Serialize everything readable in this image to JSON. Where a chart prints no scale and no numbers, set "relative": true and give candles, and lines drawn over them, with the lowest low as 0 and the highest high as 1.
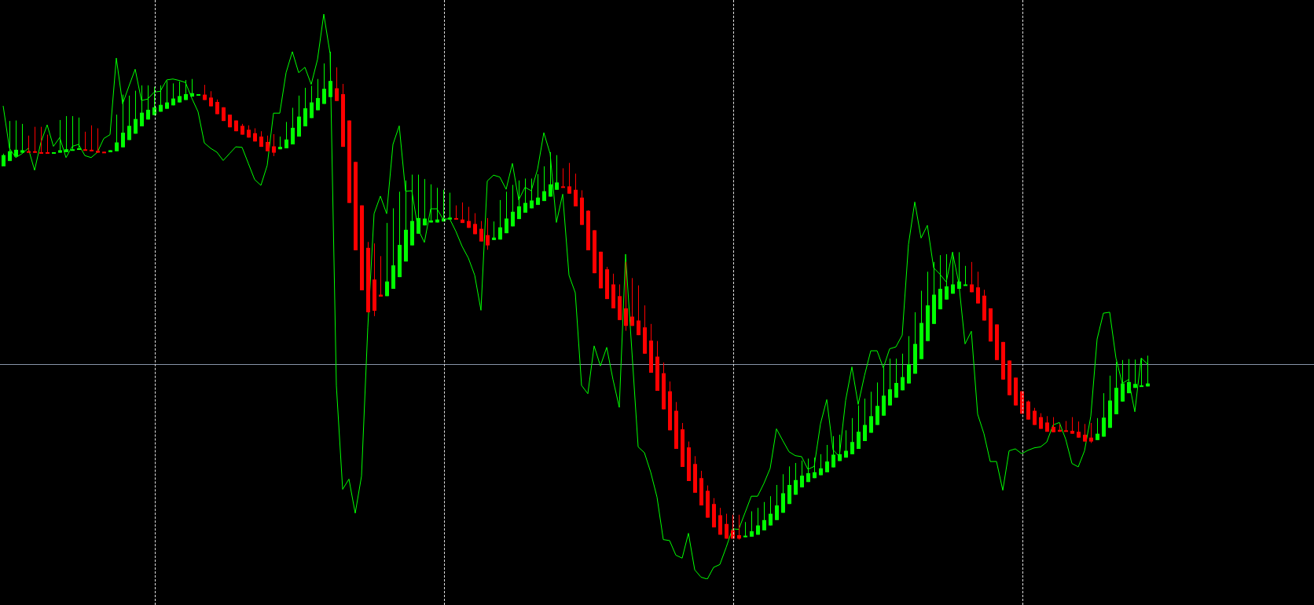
{
  "chart_data": {
    "type": "candlestick",
    "relative": true,
    "legend": false,
    "categories": [
      null,
      null,
      null,
      null,
      null,
      null,
      null,
      null,
      null,
      null,
      null,
      null,
      null,
      null,
      null,
      null,
      null,
      null,
      null,
      null,
      null,
      null,
      null,
      null,
      null,
      null,
      null,
      null,
      null,
      null,
      null,
      null,
      null,
      null,
      null,
      null,
      null,
      null,
      null,
      null,
      null,
      null,
      null,
      null,
      null,
      null,
      null,
      null,
      null,
      null,
      null,
      null,
      null,
      null,
      null,
      null,
      null,
      null,
      null,
      null,
      null,
      null,
      null,
      null,
      null,
      null,
      null,
      null,
      null,
      null,
      null,
      null,
      null,
      null,
      null,
      null,
      null,
      null,
      null,
      null,
      null,
      null,
      null,
      null,
      null,
      null,
      null,
      null,
      null,
      null,
      null,
      null,
      null,
      null,
      null,
      null,
      null,
      null,
      null,
      null,
      null,
      null,
      null,
      null,
      null,
      null,
      null,
      null,
      null,
      null,
      null,
      null,
      null,
      null,
      null,
      null,
      null,
      null,
      null,
      null,
      null,
      null,
      null,
      null,
      null,
      null,
      null,
      null,
      null,
      null,
      null,
      null,
      null,
      null,
      null,
      null,
      null,
      null,
      null,
      null,
      null,
      null,
      null,
      null,
      null,
      null,
      null,
      null,
      null,
      null,
      null,
      null,
      null,
      null,
      null,
      null,
      null,
      null,
      null,
      null,
      null,
      null,
      null,
      null,
      null,
      null,
      null,
      null,
      null,
      null,
      null,
      null,
      null,
      null,
      null,
      null,
      null,
      null,
      null,
      null,
      null,
      null,
      null
    ],
    "ref_lines": [
      {
        "axis": "y",
        "value": 0.359,
        "color": "#8794a8"
      }
    ],
    "series": [
      {
        "type": "line",
        "color": "#00ff00",
        "values": [
          0.889,
          0.802,
          0.783,
          0.791,
          0.802,
          0.757,
          0.814,
          0.85,
          0.806,
          0.824,
          0.783,
          0.806,
          0.81,
          0.787,
          0.783,
          0.794,
          0.822,
          0.83,
          0.987,
          0.893,
          0.929,
          0.964,
          0.9,
          0.903,
          0.917,
          0.919,
          0.942,
          0.944,
          0.941,
          0.937,
          0.905,
          0.877,
          0.813,
          0.802,
          0.794,
          0.777,
          0.791,
          0.805,
          0.804,
          0.771,
          0.738,
          0.726,
          0.767,
          0.874,
          0.874,
          0.957,
          1.0,
          0.957,
          0.968,
          0.933,
          0.984,
          1.077,
          0.996,
          0.316,
          0.103,
          0.124,
          0.054,
          0.13,
          0.435,
          0.668,
          0.704,
          0.668,
          0.81,
          0.848,
          0.714,
          0.715,
          0.636,
          0.609,
          0.678,
          0.678,
          0.656,
          0.658,
          0.632,
          0.601,
          0.577,
          0.542,
          0.47,
          0.735,
          0.747,
          0.743,
          0.718,
          0.771,
          0.696,
          0.722,
          0.715,
          0.759,
          0.834,
          0.791,
          0.65,
          0.708,
          0.542,
          0.506,
          0.316,
          0.299,
          0.397,
          0.356,
          0.394,
          0.328,
          0.271,
          0.585,
          0.387,
          0.19,
          0.178,
          0.138,
          0.087,
          0,
          -0.002,
          -0.032,
          -0.038,
          0.013,
          -0.062,
          -0.077,
          -0.081,
          -0.057,
          -0.051,
          -0.016,
          0.022,
          0.021,
          0.055,
          0.089,
          0.089,
          0.115,
          0.146,
          0.227,
          0.203,
          0.18,
          0.172,
          0.17,
          0.144,
          0.15,
          0.237,
          0.287,
          0.184,
          0.17,
          0.285,
          0.354,
          0.277,
          0.336,
          0.387,
          0.387,
          0.352,
          0.391,
          0.395,
          0.419,
          0.605,
          0.692,
          0.618,
          0.644,
          0.557,
          0.544,
          0.528,
          0.589,
          0.526,
          0.401,
          0.427,
          0.257,
          0.217,
          0.16,
          0.16,
          0.101,
          0.182,
          0.186,
          0.176,
          0.183,
          0.188,
          0.19,
          0.2,
          0.235,
          0.24,
          0.206,
          0.156,
          0.149,
          0.182,
          0.253,
          0.411,
          0.464,
          0.466,
          0.372,
          0.32,
          0.328,
          0.262,
          0.372,
          0.36
        ]
      },
      {
        "type": "candlestick",
        "colors": [
          "#00ff00",
          "#00ff00",
          "#00ff00",
          "#00ff00",
          "#ff0000",
          "#ff0000",
          "#ff0000",
          "#ff0000",
          "#00ff00",
          "#00ff00",
          "#00ff00",
          "#00ff00",
          "#00ff00",
          "#ff0000",
          "#ff0000",
          "#ff0000",
          "#ff0000",
          "#00ff00",
          "#00ff00",
          "#00ff00",
          "#00ff00",
          "#00ff00",
          "#00ff00",
          "#00ff00",
          "#00ff00",
          "#00ff00",
          "#00ff00",
          "#00ff00",
          "#00ff00",
          "#00ff00",
          "#00ff00",
          "#00ff00",
          "#ff0000",
          "#ff0000",
          "#ff0000",
          "#ff0000",
          "#ff0000",
          "#ff0000",
          "#ff0000",
          "#ff0000",
          "#ff0000",
          "#ff0000",
          "#ff0000",
          "#ff0000",
          "#00ff00",
          "#00ff00",
          "#00ff00",
          "#00ff00",
          "#00ff00",
          "#00ff00",
          "#00ff00",
          "#00ff00",
          "#00ff00",
          "#ff0000",
          "#ff0000",
          "#ff0000",
          "#ff0000",
          "#ff0000",
          "#ff0000",
          "#ff0000",
          "#ff0000",
          "#00ff00",
          "#00ff00",
          "#00ff00",
          "#00ff00",
          "#00ff00",
          "#00ff00",
          "#00ff00",
          "#00ff00",
          "#00ff00",
          "#00ff00",
          "#00ff00",
          "#ff0000",
          "#ff0000",
          "#ff0000",
          "#ff0000",
          "#ff0000",
          "#ff0000",
          "#00ff00",
          "#00ff00",
          "#00ff00",
          "#00ff00",
          "#00ff00",
          "#00ff00",
          "#00ff00",
          "#00ff00",
          "#00ff00",
          "#00ff00",
          "#00ff00",
          "#ff0000",
          "#ff0000",
          "#ff0000",
          "#ff0000",
          "#ff0000",
          "#ff0000",
          "#ff0000",
          "#ff0000",
          "#ff0000",
          "#ff0000",
          "#ff0000",
          "#ff0000",
          "#ff0000",
          "#ff0000",
          "#ff0000",
          "#ff0000",
          "#ff0000",
          "#ff0000",
          "#ff0000",
          "#ff0000",
          "#ff0000",
          "#ff0000",
          "#ff0000",
          "#ff0000",
          "#ff0000",
          "#ff0000",
          "#ff0000",
          "#ff0000",
          "#ff0000",
          "#00ff00",
          "#00ff00",
          "#00ff00",
          "#00ff00",
          "#00ff00",
          "#00ff00",
          "#00ff00",
          "#00ff00",
          "#00ff00",
          "#00ff00",
          "#00ff00",
          "#00ff00",
          "#00ff00",
          "#00ff00",
          "#00ff00",
          "#00ff00",
          "#00ff00",
          "#00ff00",
          "#00ff00",
          "#00ff00",
          "#00ff00",
          "#00ff00",
          "#00ff00",
          "#00ff00",
          "#00ff00",
          "#00ff00",
          "#00ff00",
          "#00ff00",
          "#00ff00",
          "#00ff00",
          "#00ff00",
          "#00ff00",
          "#00ff00",
          "#00ff00",
          "#00ff00",
          "#00ff00",
          "#ff0000",
          "#ff0000",
          "#ff0000",
          "#ff0000",
          "#ff0000",
          "#ff0000",
          "#ff0000",
          "#ff0000",
          "#ff0000",
          "#ff0000",
          "#ff0000",
          "#ff0000",
          "#ff0000",
          "#ff0000",
          "#ff0000",
          "#ff0000",
          "#ff0000",
          "#ff0000",
          "#ff0000",
          "#ff0000",
          "#00ff00",
          "#00ff00",
          "#00ff00",
          "#00ff00",
          "#00ff00",
          "#00ff00",
          "#00ff00",
          "#00ff00",
          "#00ff00"
        ],
        "ohlc": [
          [
            0.765,
            0.791,
            0.765,
            0.788
          ],
          [
            0.776,
            0.858,
            0.776,
            0.796
          ],
          [
            0.785,
            0.859,
            0.785,
            0.799
          ],
          [
            0.793,
            0.852,
            0.793,
            0.798
          ],
          [
            0.796,
            0.828,
            0.794,
            0.794
          ],
          [
            0.796,
            0.846,
            0.793,
            0.793
          ],
          [
            0.794,
            0.846,
            0.791,
            0.791
          ],
          [
            0.794,
            0.83,
            0.791,
            0.791
          ],
          [
            0.793,
            0.794,
            0.793,
            0.794
          ],
          [
            0.793,
            0.86,
            0.793,
            0.798
          ],
          [
            0.794,
            0.868,
            0.794,
            0.8
          ],
          [
            0.797,
            0.868,
            0.797,
            0.8
          ],
          [
            0.799,
            0.865,
            0.799,
            0.802
          ],
          [
            0.8,
            0.836,
            0.798,
            0.798
          ],
          [
            0.799,
            0.849,
            0.796,
            0.796
          ],
          [
            0.797,
            0.843,
            0.793,
            0.793
          ],
          [
            0.795,
            0.795,
            0.793,
            0.793
          ],
          [
            0.794,
            0.798,
            0.794,
            0.798
          ],
          [
            0.796,
            0.871,
            0.796,
            0.814
          ],
          [
            0.804,
            0.912,
            0.804,
            0.834
          ],
          [
            0.819,
            0.91,
            0.819,
            0.848
          ],
          [
            0.832,
            0.92,
            0.832,
            0.862
          ],
          [
            0.847,
            0.931,
            0.847,
            0.875
          ],
          [
            0.861,
            0.931,
            0.861,
            0.881
          ],
          [
            0.87,
            0.928,
            0.87,
            0.886
          ],
          [
            0.877,
            0.931,
            0.877,
            0.891
          ],
          [
            0.883,
            0.94,
            0.883,
            0.896
          ],
          [
            0.89,
            0.935,
            0.89,
            0.904
          ],
          [
            0.896,
            0.939,
            0.896,
            0.909
          ],
          [
            0.901,
            0.942,
            0.901,
            0.913
          ],
          [
            0.908,
            0.944,
            0.908,
            0.915
          ],
          [
            0.911,
            0.913,
            0.911,
            0.913
          ],
          [
            0.912,
            0.932,
            0.901,
            0.901
          ],
          [
            0.906,
            0.919,
            0.888,
            0.888
          ],
          [
            0.897,
            0.902,
            0.872,
            0.872
          ],
          [
            0.886,
            0.886,
            0.858,
            0.858
          ],
          [
            0.871,
            0.871,
            0.845,
            0.845
          ],
          [
            0.859,
            0.859,
            0.837,
            0.837
          ],
          [
            0.848,
            0.852,
            0.83,
            0.83
          ],
          [
            0.84,
            0.849,
            0.824,
            0.824
          ],
          [
            0.833,
            0.843,
            0.816,
            0.816
          ],
          [
            0.826,
            0.837,
            0.805,
            0.805
          ],
          [
            0.815,
            0.828,
            0.796,
            0.796
          ],
          [
            0.806,
            0.831,
            0.786,
            0.793
          ],
          [
            0.8,
            0.826,
            0.8,
            0.805
          ],
          [
            0.802,
            0.856,
            0.802,
            0.82
          ],
          [
            0.81,
            0.885,
            0.81,
            0.844
          ],
          [
            0.826,
            0.91,
            0.826,
            0.867
          ],
          [
            0.847,
            0.926,
            0.847,
            0.884
          ],
          [
            0.864,
            0.93,
            0.864,
            0.896
          ],
          [
            0.88,
            0.944,
            0.88,
            0.905
          ],
          [
            0.893,
            0.976,
            0.893,
            0.924
          ],
          [
            0.907,
            1.0,
            0.907,
            0.94
          ],
          [
            0.925,
            0.968,
            0.899,
            0.899
          ],
          [
            0.913,
            0.934,
            0.805,
            0.805
          ],
          [
            0.859,
            0.859,
            0.69,
            0.69
          ],
          [
            0.774,
            0.774,
            0.593,
            0.593
          ],
          [
            0.685,
            0.685,
            0.511,
            0.511
          ],
          [
            0.598,
            0.61,
            0.465,
            0.466
          ],
          [
            0.533,
            0.607,
            0.458,
            0.469
          ],
          [
            0.502,
            0.581,
            0.498,
            0.498
          ],
          [
            0.499,
            0.649,
            0.499,
            0.529
          ],
          [
            0.514,
            0.679,
            0.514,
            0.562
          ],
          [
            0.538,
            0.713,
            0.538,
            0.604
          ],
          [
            0.57,
            0.736,
            0.57,
            0.635
          ],
          [
            0.603,
            0.748,
            0.603,
            0.653
          ],
          [
            0.627,
            0.748,
            0.627,
            0.659
          ],
          [
            0.644,
            0.739,
            0.644,
            0.658
          ],
          [
            0.65,
            0.728,
            0.65,
            0.654
          ],
          [
            0.65,
            0.721,
            0.65,
            0.656
          ],
          [
            0.652,
            0.717,
            0.652,
            0.658
          ],
          [
            0.656,
            0.711,
            0.656,
            0.66
          ],
          [
            0.659,
            0.685,
            0.656,
            0.656
          ],
          [
            0.656,
            0.691,
            0.649,
            0.649
          ],
          [
            0.653,
            0.682,
            0.639,
            0.639
          ],
          [
            0.647,
            0.669,
            0.626,
            0.626
          ],
          [
            0.637,
            0.653,
            0.611,
            0.611
          ],
          [
            0.624,
            0.659,
            0.594,
            0.603
          ],
          [
            0.614,
            0.652,
            0.614,
            0.619
          ],
          [
            0.615,
            0.696,
            0.615,
            0.64
          ],
          [
            0.628,
            0.713,
            0.628,
            0.658
          ],
          [
            0.642,
            0.727,
            0.642,
            0.672
          ],
          [
            0.657,
            0.736,
            0.657,
            0.683
          ],
          [
            0.67,
            0.74,
            0.67,
            0.69
          ],
          [
            0.679,
            0.74,
            0.679,
            0.695
          ],
          [
            0.686,
            0.749,
            0.686,
            0.701
          ],
          [
            0.694,
            0.765,
            0.694,
            0.714
          ],
          [
            0.703,
            0.794,
            0.703,
            0.728
          ],
          [
            0.717,
            0.788,
            0.717,
            0.732
          ],
          [
            0.724,
            0.761,
            0.722,
            0.722
          ],
          [
            0.724,
            0.772,
            0.709,
            0.709
          ],
          [
            0.717,
            0.75,
            0.683,
            0.683
          ],
          [
            0.701,
            0.716,
            0.645,
            0.645
          ],
          [
            0.674,
            0.675,
            0.593,
            0.593
          ],
          [
            0.634,
            0.634,
            0.546,
            0.546
          ],
          [
            0.59,
            0.59,
            0.515,
            0.515
          ],
          [
            0.554,
            0.559,
            0.493,
            0.493
          ],
          [
            0.523,
            0.545,
            0.474,
            0.474
          ],
          [
            0.499,
            0.523,
            0.45,
            0.45
          ],
          [
            0.474,
            0.569,
            0.428,
            0.438
          ],
          [
            0.457,
            0.536,
            0.438,
            0.438
          ],
          [
            0.449,
            0.521,
            0.419,
            0.419
          ],
          [
            0.435,
            0.48,
            0.381,
            0.381
          ],
          [
            0.408,
            0.442,
            0.342,
            0.342
          ],
          [
            0.375,
            0.407,
            0.305,
            0.305
          ],
          [
            0.341,
            0.363,
            0.267,
            0.267
          ],
          [
            0.304,
            0.324,
            0.224,
            0.224
          ],
          [
            0.264,
            0.282,
            0.186,
            0.186
          ],
          [
            0.226,
            0.239,
            0.149,
            0.149
          ],
          [
            0.189,
            0.201,
            0.12,
            0.12
          ],
          [
            0.155,
            0.171,
            0.096,
            0.096
          ],
          [
            0.126,
            0.141,
            0.07,
            0.07
          ],
          [
            0.1,
            0.111,
            0.045,
            0.045
          ],
          [
            0.073,
            0.085,
            0.025,
            0.025
          ],
          [
            0.05,
            0.065,
            0.01,
            0.01
          ],
          [
            0.032,
            0.053,
            0.002,
            0.002
          ],
          [
            0.019,
            0.051,
            0.002,
            0.002
          ],
          [
            0.009,
            0.051,
            0,
            0.002
          ],
          [
            0.005,
            0.036,
            0.005,
            0.008
          ],
          [
            0.006,
            0.058,
            0.006,
            0.017
          ],
          [
            0.01,
            0.065,
            0.01,
            0.029
          ],
          [
            0.019,
            0.077,
            0.019,
            0.04
          ],
          [
            0.029,
            0.089,
            0.029,
            0.053
          ],
          [
            0.04,
            0.112,
            0.04,
            0.07
          ],
          [
            0.055,
            0.134,
            0.055,
            0.095
          ],
          [
            0.073,
            0.15,
            0.073,
            0.112
          ],
          [
            0.092,
            0.157,
            0.092,
            0.122
          ],
          [
            0.107,
            0.162,
            0.107,
            0.131
          ],
          [
            0.118,
            0.166,
            0.118,
            0.136
          ],
          [
            0.126,
            0.168,
            0.126,
            0.138
          ],
          [
            0.132,
            0.175,
            0.132,
            0.146
          ],
          [
            0.138,
            0.194,
            0.138,
            0.16
          ],
          [
            0.148,
            0.212,
            0.148,
            0.174
          ],
          [
            0.161,
            0.215,
            0.161,
            0.175
          ],
          [
            0.168,
            0.224,
            0.168,
            0.182
          ],
          [
            0.175,
            0.249,
            0.175,
            0.2
          ],
          [
            0.186,
            0.275,
            0.186,
            0.221
          ],
          [
            0.202,
            0.289,
            0.202,
            0.235
          ],
          [
            0.219,
            0.303,
            0.219,
            0.253
          ],
          [
            0.235,
            0.322,
            0.235,
            0.274
          ],
          [
            0.254,
            0.352,
            0.254,
            0.295
          ],
          [
            0.275,
            0.371,
            0.275,
            0.308
          ],
          [
            0.291,
            0.371,
            0.291,
            0.321
          ],
          [
            0.306,
            0.381,
            0.306,
            0.333
          ],
          [
            0.32,
            0.417,
            0.32,
            0.359
          ],
          [
            0.34,
            0.466,
            0.34,
            0.401
          ],
          [
            0.37,
            0.51,
            0.37,
            0.444
          ],
          [
            0.407,
            0.549,
            0.407,
            0.48
          ],
          [
            0.442,
            0.569,
            0.442,
            0.502
          ],
          [
            0.472,
            0.583,
            0.472,
            0.514
          ],
          [
            0.492,
            0.585,
            0.492,
            0.519
          ],
          [
            0.504,
            0.589,
            0.504,
            0.523
          ],
          [
            0.514,
            0.589,
            0.514,
            0.529
          ],
          [
            0.521,
            0.561,
            0.521,
            0.523
          ],
          [
            0.523,
            0.569,
            0.507,
            0.507
          ],
          [
            0.517,
            0.549,
            0.484,
            0.484
          ],
          [
            0.5,
            0.512,
            0.449,
            0.449
          ],
          [
            0.474,
            0.474,
            0.406,
            0.406
          ],
          [
            0.441,
            0.441,
            0.368,
            0.368
          ],
          [
            0.405,
            0.405,
            0.328,
            0.328
          ],
          [
            0.367,
            0.367,
            0.296,
            0.296
          ],
          [
            0.332,
            0.332,
            0.275,
            0.275
          ],
          [
            0.304,
            0.304,
            0.258,
            0.258
          ],
          [
            0.283,
            0.285,
            0.246,
            0.246
          ],
          [
            0.264,
            0.27,
            0.235,
            0.235
          ],
          [
            0.251,
            0.259,
            0.227,
            0.227
          ],
          [
            0.24,
            0.253,
            0.221,
            0.221
          ],
          [
            0.231,
            0.251,
            0.22,
            0.22
          ],
          [
            0.225,
            0.236,
            0.221,
            0.221
          ],
          [
            0.224,
            0.243,
            0.222,
            0.222
          ],
          [
            0.223,
            0.251,
            0.217,
            0.217
          ],
          [
            0.221,
            0.242,
            0.209,
            0.209
          ],
          [
            0.215,
            0.237,
            0.201,
            0.201
          ],
          [
            0.209,
            0.239,
            0.198,
            0.201
          ],
          [
            0.204,
            0.249,
            0.204,
            0.217
          ],
          [
            0.211,
            0.3,
            0.211,
            0.25
          ],
          [
            0.229,
            0.336,
            0.229,
            0.285
          ],
          [
            0.257,
            0.364,
            0.257,
            0.311
          ],
          [
            0.283,
            0.368,
            0.283,
            0.32
          ],
          [
            0.3,
            0.37,
            0.3,
            0.323
          ],
          [
            0.311,
            0.369,
            0.311,
            0.319
          ],
          [
            0.314,
            0.372,
            0.314,
            0.316
          ],
          [
            0.314,
            0.377,
            0.314,
            0.32
          ]
        ]
      }
    ]
  }
}
